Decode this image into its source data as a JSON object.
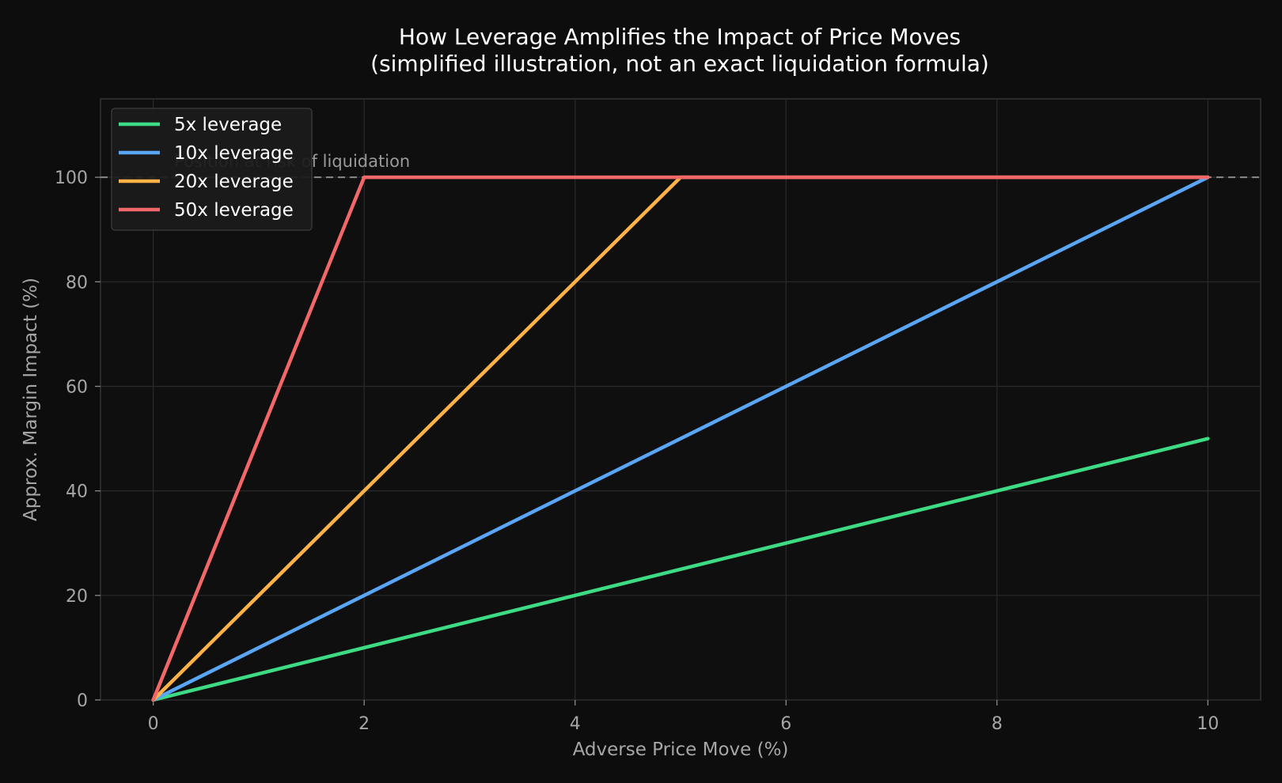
{
  "chart_data": {
    "type": "line",
    "title": "How Leverage Amplifies the Impact of Price Moves",
    "subtitle": "(simplified illustration, not an exact liquidation formula)",
    "xlabel": "Adverse Price Move (%)",
    "ylabel": "Approx. Margin Impact (%)",
    "xlim": [
      -0.5,
      10.5
    ],
    "ylim": [
      0,
      115
    ],
    "xticks": [
      0,
      2,
      4,
      6,
      8,
      10
    ],
    "yticks": [
      0,
      20,
      40,
      60,
      80,
      100
    ],
    "x_tick_labels": [
      "0",
      "2",
      "4",
      "6",
      "8",
      "10"
    ],
    "y_tick_labels": [
      "0",
      "20",
      "40",
      "60",
      "80",
      "100"
    ],
    "grid": true,
    "legend_position": "top-left",
    "reference_line": {
      "y": 100,
      "label": "Position at risk of liquidation",
      "style": "dashed",
      "color": "#8a8a8a"
    },
    "series": [
      {
        "name": "5x leverage",
        "color": "#3ddc84",
        "x": [
          0,
          2,
          4,
          6,
          8,
          10
        ],
        "y": [
          0,
          10,
          20,
          30,
          40,
          50
        ]
      },
      {
        "name": "10x leverage",
        "color": "#58a6f5",
        "x": [
          0,
          2,
          4,
          6,
          8,
          10
        ],
        "y": [
          0,
          20,
          40,
          60,
          80,
          100
        ]
      },
      {
        "name": "20x leverage",
        "color": "#ffb347",
        "x": [
          0,
          2,
          4,
          4.9,
          5,
          10
        ],
        "y": [
          0,
          40,
          80,
          98,
          100,
          100
        ]
      },
      {
        "name": "50x leverage",
        "color": "#f26868",
        "x": [
          0,
          1.9,
          2,
          10
        ],
        "y": [
          0,
          95,
          100,
          100
        ]
      }
    ]
  }
}
